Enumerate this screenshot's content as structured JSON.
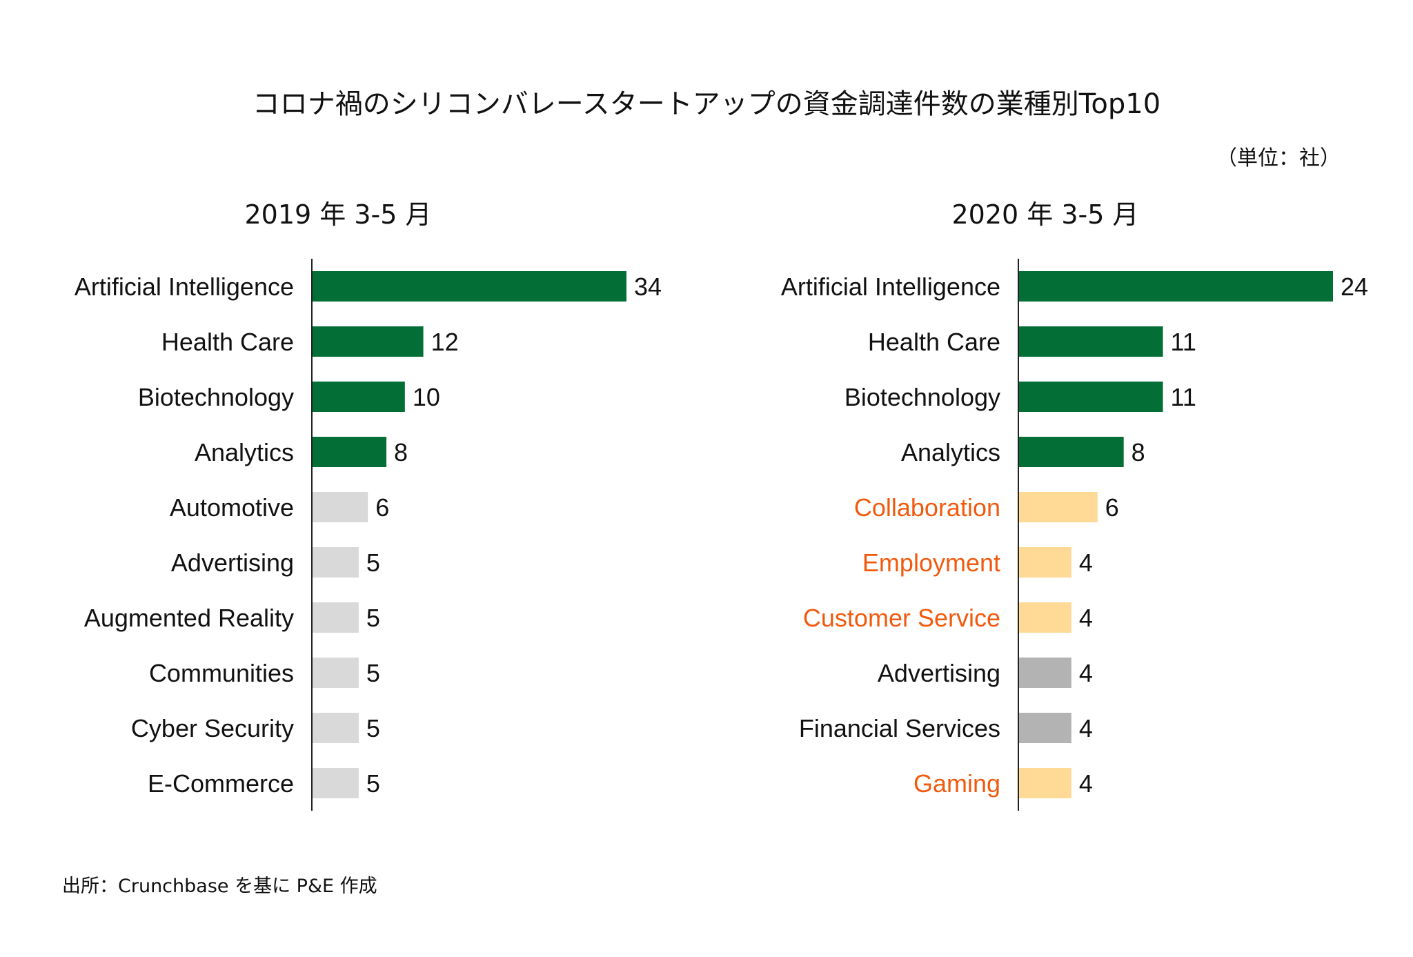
{
  "title": "コロナ禍のシリコンバレースタートアップの資金調達件数の業種別Top10",
  "unit": "（単位：社）",
  "source": "出所：Crunchbase を基に P&E 作成",
  "colors": {
    "green": "#036e35",
    "light_gray": "#d9d9d9",
    "dark_gray": "#b3b3b3",
    "yellow": "#ffd996",
    "orange_text": "#f15a0e",
    "label_text": "#111111",
    "axis": "#222222"
  },
  "chart_data": [
    {
      "type": "bar",
      "orientation": "horizontal",
      "subtitle": "2019 年 3-5 月",
      "categories": [
        "Artificial Intelligence",
        "Health Care",
        "Biotechnology",
        "Analytics",
        "Automotive",
        "Advertising",
        "Augmented Reality",
        "Communities",
        "Cyber Security",
        "E-Commerce"
      ],
      "values": [
        34,
        12,
        10,
        8,
        6,
        5,
        5,
        5,
        5,
        5
      ],
      "bar_colors": [
        "green",
        "green",
        "green",
        "green",
        "light_gray",
        "light_gray",
        "light_gray",
        "light_gray",
        "light_gray",
        "light_gray"
      ],
      "label_colors": [
        "label_text",
        "label_text",
        "label_text",
        "label_text",
        "label_text",
        "label_text",
        "label_text",
        "label_text",
        "label_text",
        "label_text"
      ],
      "xlim": [
        0,
        34
      ]
    },
    {
      "type": "bar",
      "orientation": "horizontal",
      "subtitle": "2020 年 3-5 月",
      "categories": [
        "Artificial Intelligence",
        "Health Care",
        "Biotechnology",
        "Analytics",
        "Collaboration",
        "Employment",
        "Customer Service",
        "Advertising",
        "Financial Services",
        "Gaming"
      ],
      "values": [
        24,
        11,
        11,
        8,
        6,
        4,
        4,
        4,
        4,
        4
      ],
      "bar_colors": [
        "green",
        "green",
        "green",
        "green",
        "yellow",
        "yellow",
        "yellow",
        "dark_gray",
        "dark_gray",
        "yellow"
      ],
      "label_colors": [
        "label_text",
        "label_text",
        "label_text",
        "label_text",
        "orange_text",
        "orange_text",
        "orange_text",
        "label_text",
        "label_text",
        "orange_text"
      ],
      "xlim": [
        0,
        24
      ]
    }
  ]
}
